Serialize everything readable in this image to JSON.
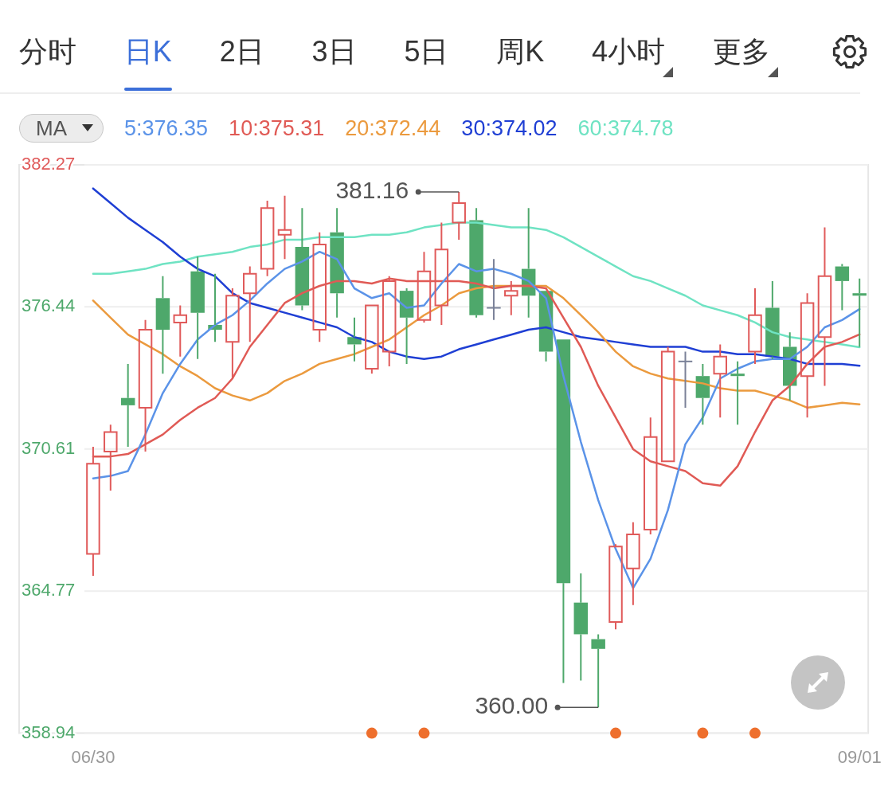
{
  "chart_data": [
    {
      "type": "other",
      "annotations": [
        "分时",
        "日K",
        "2日",
        "3日",
        "5日",
        "周K",
        "4小时",
        "更多"
      ]
    },
    {
      "type": "candlestick",
      "categories": [
        "06/30",
        null,
        null,
        null,
        null,
        null,
        null,
        null,
        null,
        null,
        null,
        null,
        null,
        null,
        null,
        null,
        null,
        null,
        null,
        null,
        null,
        null,
        null,
        null,
        null,
        null,
        null,
        null,
        null,
        null,
        null,
        null,
        null,
        null,
        null,
        null,
        null,
        null,
        null,
        null,
        null,
        null,
        null,
        null,
        "09/01"
      ],
      "ohlc": [
        [
          366.3,
          370.7,
          365.4,
          370.0
        ],
        [
          370.5,
          371.6,
          368.9,
          371.3
        ],
        [
          372.7,
          374.1,
          370.7,
          372.4
        ],
        [
          372.3,
          375.9,
          370.5,
          375.5
        ],
        [
          376.8,
          377.7,
          373.7,
          375.5
        ],
        [
          375.8,
          376.5,
          374.4,
          376.1
        ],
        [
          377.9,
          378.5,
          374.3,
          376.2
        ],
        [
          375.7,
          377.8,
          375.0,
          375.5
        ],
        [
          375.0,
          377.2,
          373.5,
          376.9
        ],
        [
          377.0,
          378.1,
          375.0,
          377.8
        ],
        [
          378.0,
          380.8,
          377.7,
          380.5
        ],
        [
          379.4,
          381.0,
          378.4,
          379.6
        ],
        [
          378.9,
          380.5,
          376.3,
          376.5
        ],
        [
          375.5,
          379.5,
          375.0,
          379.0
        ],
        [
          379.5,
          380.5,
          376.0,
          377.0
        ],
        [
          375.2,
          376.0,
          374.2,
          374.9
        ],
        [
          373.9,
          376.5,
          373.7,
          376.5
        ],
        [
          374.6,
          377.7,
          374.0,
          377.5
        ],
        [
          377.1,
          377.2,
          374.1,
          376.0
        ],
        [
          375.9,
          378.7,
          375.8,
          377.9
        ],
        [
          376.5,
          379.9,
          375.7,
          378.8
        ],
        [
          379.9,
          381.16,
          379.2,
          380.7
        ],
        [
          380.0,
          380.5,
          376.0,
          376.1
        ],
        [
          376.4,
          378.4,
          375.9,
          376.4
        ],
        [
          376.9,
          377.5,
          376.1,
          377.1
        ],
        [
          378.0,
          380.5,
          376.0,
          376.9
        ],
        [
          377.1,
          377.1,
          374.2,
          374.6
        ],
        [
          375.1,
          375.1,
          361.0,
          365.1
        ],
        [
          364.3,
          365.5,
          361.1,
          363.0
        ],
        [
          362.8,
          363.0,
          360.0,
          362.4
        ],
        [
          363.5,
          366.7,
          363.2,
          366.6
        ],
        [
          365.7,
          367.6,
          364.2,
          367.1
        ],
        [
          367.3,
          371.9,
          367.1,
          371.1
        ],
        [
          370.1,
          374.8,
          370.1,
          374.6
        ],
        [
          374.2,
          374.6,
          372.3,
          374.2
        ],
        [
          373.6,
          374.1,
          371.6,
          372.7
        ],
        [
          373.7,
          374.9,
          371.9,
          374.4
        ],
        [
          373.7,
          374.2,
          371.6,
          373.6
        ],
        [
          374.6,
          377.2,
          374.1,
          376.1
        ],
        [
          376.4,
          377.5,
          374.3,
          374.4
        ],
        [
          374.8,
          375.4,
          372.6,
          373.2
        ],
        [
          373.6,
          377.0,
          371.9,
          376.6
        ],
        [
          375.2,
          379.7,
          373.2,
          377.7
        ],
        [
          378.1,
          378.2,
          376.3,
          377.5
        ],
        [
          377.0,
          377.6,
          374.8,
          376.9
        ]
      ],
      "colors": [
        "#e05a5a",
        "#e05a5a",
        "#4ea86b",
        "#e05a5a",
        "#4ea86b",
        "#e05a5a",
        "#4ea86b",
        "#4ea86b",
        "#e05a5a",
        "#e05a5a",
        "#e05a5a",
        "#e05a5a",
        "#4ea86b",
        "#e05a5a",
        "#4ea86b",
        "#4ea86b",
        "#e05a5a",
        "#e05a5a",
        "#4ea86b",
        "#e05a5a",
        "#e05a5a",
        "#e05a5a",
        "#4ea86b",
        "#7a8198",
        "#e05a5a",
        "#4ea86b",
        "#4ea86b",
        "#4ea86b",
        "#4ea86b",
        "#4ea86b",
        "#e05a5a",
        "#e05a5a",
        "#e05a5a",
        "#e05a5a",
        "#7a8198",
        "#4ea86b",
        "#e05a5a",
        "#4ea86b",
        "#e05a5a",
        "#4ea86b",
        "#4ea86b",
        "#e05a5a",
        "#e05a5a",
        "#4ea86b",
        "#4ea86b"
      ],
      "series": [
        {
          "name": "5:376.35",
          "type": "line",
          "color": "#5b93e8",
          "values": [
            369.4,
            369.5,
            369.7,
            371.2,
            372.9,
            374.1,
            375.1,
            375.7,
            376.1,
            376.7,
            377.4,
            378.0,
            378.3,
            378.7,
            378.4,
            377.2,
            376.8,
            377.0,
            376.4,
            376.5,
            377.4,
            378.2,
            377.9,
            378.0,
            377.8,
            377.5,
            376.8,
            373.6,
            370.9,
            368.5,
            366.5,
            364.9,
            366.1,
            368.1,
            370.8,
            371.9,
            373.5,
            373.9,
            374.2,
            374.3,
            374.3,
            374.8,
            375.6,
            375.9,
            376.35
          ]
        },
        {
          "name": "10:375.31",
          "type": "line",
          "color": "#e05a55",
          "values": [
            370.3,
            370.3,
            370.4,
            370.8,
            371.2,
            371.8,
            372.3,
            372.7,
            373.5,
            374.8,
            375.7,
            376.6,
            377.0,
            377.3,
            377.5,
            377.5,
            377.4,
            377.6,
            377.5,
            377.5,
            377.5,
            377.5,
            377.4,
            377.2,
            377.3,
            377.3,
            377.2,
            376.0,
            374.8,
            373.2,
            371.9,
            370.6,
            370.1,
            369.9,
            369.7,
            369.2,
            369.1,
            369.9,
            371.3,
            372.6,
            373.2,
            374.1,
            374.8,
            375.0,
            375.31
          ]
        },
        {
          "name": "20:372.44",
          "type": "line",
          "color": "#eb9a3e",
          "values": [
            376.7,
            376.0,
            375.3,
            374.9,
            374.5,
            374.0,
            373.6,
            373.1,
            372.8,
            372.6,
            372.9,
            373.4,
            373.7,
            374.1,
            374.3,
            374.5,
            374.8,
            375.1,
            375.6,
            376.1,
            376.5,
            377.0,
            377.2,
            377.3,
            377.3,
            377.3,
            377.3,
            376.8,
            376.1,
            375.4,
            374.6,
            374.0,
            373.7,
            373.5,
            373.4,
            373.3,
            373.1,
            373.0,
            373.0,
            372.8,
            372.6,
            372.3,
            372.4,
            372.5,
            372.44
          ]
        },
        {
          "name": "30:374.02",
          "type": "line",
          "color": "#1f3fd4",
          "values": [
            381.3,
            380.7,
            380.1,
            379.6,
            379.1,
            378.5,
            378.0,
            377.7,
            377.0,
            376.6,
            376.4,
            376.2,
            376.0,
            375.8,
            375.6,
            375.2,
            375.0,
            374.6,
            374.4,
            374.3,
            374.4,
            374.7,
            374.9,
            375.1,
            375.3,
            375.5,
            375.6,
            375.4,
            375.2,
            375.1,
            375.0,
            374.9,
            374.8,
            374.8,
            374.8,
            374.6,
            374.6,
            374.5,
            374.5,
            374.4,
            374.3,
            374.1,
            374.1,
            374.1,
            374.02
          ]
        },
        {
          "name": "60:374.78",
          "type": "line",
          "color": "#6fe3c3",
          "values": [
            377.8,
            377.8,
            377.9,
            378.0,
            378.2,
            378.3,
            378.5,
            378.6,
            378.7,
            378.9,
            379.0,
            379.2,
            379.2,
            379.3,
            379.3,
            379.3,
            379.4,
            379.4,
            379.5,
            379.7,
            379.8,
            379.9,
            379.9,
            379.8,
            379.7,
            379.7,
            379.6,
            379.3,
            378.9,
            378.5,
            378.1,
            377.7,
            377.5,
            377.2,
            376.9,
            376.5,
            376.3,
            376.1,
            375.8,
            375.4,
            375.2,
            375.1,
            375.0,
            374.9,
            374.78
          ]
        },
        {
          "type": "scatter",
          "color": "#ee6f2d",
          "marker": "circle",
          "values": [
            null,
            null,
            null,
            null,
            null,
            null,
            null,
            null,
            null,
            null,
            null,
            null,
            null,
            null,
            null,
            null,
            358.94,
            null,
            null,
            358.94,
            null,
            null,
            null,
            null,
            null,
            null,
            null,
            null,
            null,
            null,
            358.94,
            null,
            null,
            null,
            null,
            358.94,
            null,
            null,
            358.94,
            null,
            null,
            null,
            null,
            null,
            null
          ]
        }
      ],
      "ylim": [
        358.94,
        382.27
      ],
      "yticks": [
        358.94,
        364.77,
        370.61,
        376.44,
        382.27
      ],
      "grid": "y",
      "legend": "top",
      "legend_title": "MA",
      "annotations": [
        "381.16",
        "360.00"
      ]
    }
  ]
}
